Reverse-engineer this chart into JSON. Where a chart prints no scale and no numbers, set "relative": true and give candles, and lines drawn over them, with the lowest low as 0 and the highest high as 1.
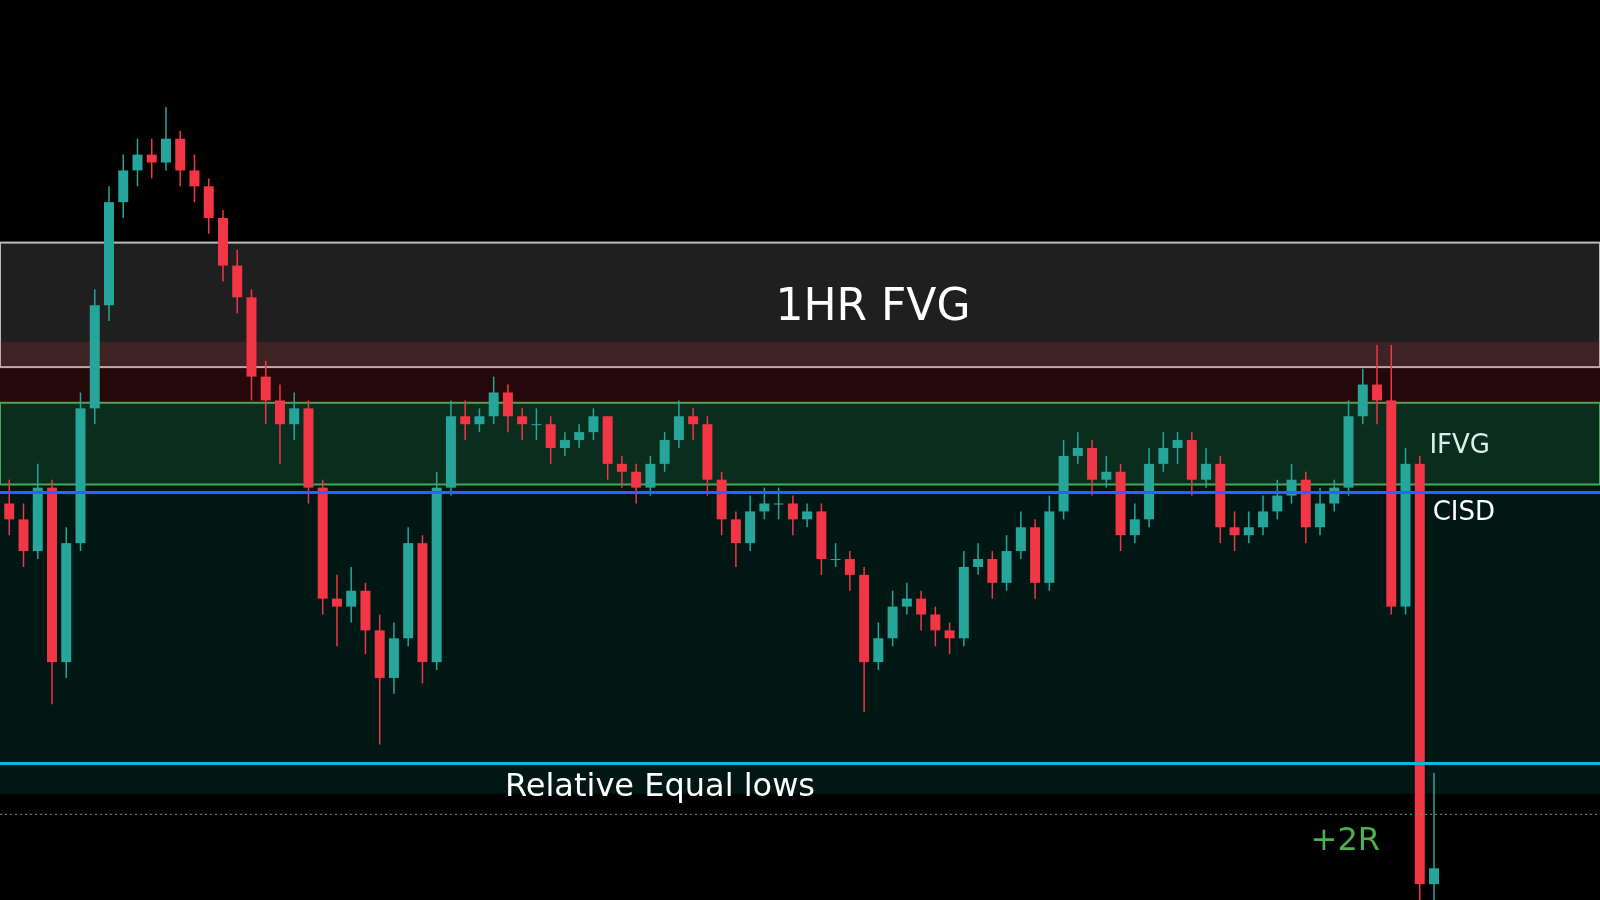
{
  "chart_data": {
    "type": "candlestick",
    "categories": [
      null,
      null,
      null,
      null,
      null,
      null,
      null,
      null,
      null,
      null,
      null,
      null,
      null,
      null,
      null,
      null,
      null,
      null,
      null,
      null,
      null,
      null,
      null,
      null,
      null,
      null,
      null,
      null,
      null,
      null,
      null,
      null,
      null,
      null,
      null,
      null,
      null,
      null,
      null,
      null,
      null,
      null,
      null,
      null,
      null,
      null,
      null,
      null,
      null,
      null,
      null,
      null,
      null,
      null,
      null,
      null,
      null,
      null,
      null,
      null,
      null,
      null,
      null,
      null,
      null,
      null,
      null,
      null,
      null,
      null,
      null,
      null,
      null,
      null,
      null,
      null,
      null,
      null,
      null,
      null,
      null,
      null,
      null,
      null,
      null,
      null,
      null,
      null,
      null,
      null,
      null,
      null,
      null,
      null,
      null,
      null,
      null,
      null,
      null,
      null,
      null,
      null,
      null,
      null,
      null,
      null,
      null,
      null,
      null,
      null,
      null,
      null
    ],
    "ohlc": [
      [
        0.5,
        0.53,
        0.46,
        0.48
      ],
      [
        0.48,
        0.5,
        0.42,
        0.44
      ],
      [
        0.44,
        0.55,
        0.43,
        0.52
      ],
      [
        0.52,
        0.53,
        0.247,
        0.3
      ],
      [
        0.3,
        0.47,
        0.28,
        0.45
      ],
      [
        0.45,
        0.64,
        0.44,
        0.62
      ],
      [
        0.62,
        0.77,
        0.6,
        0.75
      ],
      [
        0.75,
        0.9,
        0.73,
        0.88
      ],
      [
        0.88,
        0.94,
        0.86,
        0.92
      ],
      [
        0.92,
        0.96,
        0.9,
        0.94
      ],
      [
        0.94,
        0.96,
        0.91,
        0.93
      ],
      [
        0.93,
        1.0,
        0.92,
        0.96
      ],
      [
        0.96,
        0.97,
        0.9,
        0.92
      ],
      [
        0.92,
        0.94,
        0.88,
        0.9
      ],
      [
        0.9,
        0.91,
        0.84,
        0.86
      ],
      [
        0.86,
        0.87,
        0.78,
        0.8
      ],
      [
        0.8,
        0.82,
        0.74,
        0.76
      ],
      [
        0.76,
        0.77,
        0.63,
        0.66
      ],
      [
        0.66,
        0.68,
        0.6,
        0.63
      ],
      [
        0.63,
        0.65,
        0.55,
        0.6
      ],
      [
        0.6,
        0.64,
        0.58,
        0.62
      ],
      [
        0.62,
        0.63,
        0.5,
        0.52
      ],
      [
        0.52,
        0.53,
        0.36,
        0.38
      ],
      [
        0.38,
        0.41,
        0.32,
        0.37
      ],
      [
        0.37,
        0.42,
        0.35,
        0.39
      ],
      [
        0.39,
        0.4,
        0.31,
        0.34
      ],
      [
        0.34,
        0.36,
        0.196,
        0.28
      ],
      [
        0.28,
        0.35,
        0.26,
        0.33
      ],
      [
        0.33,
        0.47,
        0.32,
        0.45
      ],
      [
        0.45,
        0.46,
        0.273,
        0.3
      ],
      [
        0.3,
        0.54,
        0.29,
        0.52
      ],
      [
        0.52,
        0.63,
        0.51,
        0.61
      ],
      [
        0.61,
        0.63,
        0.58,
        0.6
      ],
      [
        0.6,
        0.62,
        0.59,
        0.61
      ],
      [
        0.61,
        0.66,
        0.6,
        0.64
      ],
      [
        0.64,
        0.65,
        0.59,
        0.61
      ],
      [
        0.61,
        0.62,
        0.58,
        0.6
      ],
      [
        0.6,
        0.62,
        0.58,
        0.6
      ],
      [
        0.6,
        0.61,
        0.55,
        0.57
      ],
      [
        0.57,
        0.59,
        0.56,
        0.58
      ],
      [
        0.58,
        0.6,
        0.57,
        0.59
      ],
      [
        0.59,
        0.62,
        0.58,
        0.61
      ],
      [
        0.61,
        0.61,
        0.53,
        0.55
      ],
      [
        0.55,
        0.56,
        0.52,
        0.54
      ],
      [
        0.54,
        0.55,
        0.5,
        0.52
      ],
      [
        0.52,
        0.56,
        0.51,
        0.55
      ],
      [
        0.55,
        0.59,
        0.54,
        0.58
      ],
      [
        0.58,
        0.63,
        0.57,
        0.61
      ],
      [
        0.61,
        0.62,
        0.58,
        0.6
      ],
      [
        0.6,
        0.61,
        0.51,
        0.53
      ],
      [
        0.53,
        0.54,
        0.46,
        0.48
      ],
      [
        0.48,
        0.49,
        0.42,
        0.45
      ],
      [
        0.45,
        0.51,
        0.44,
        0.49
      ],
      [
        0.49,
        0.52,
        0.48,
        0.5
      ],
      [
        0.5,
        0.52,
        0.48,
        0.5
      ],
      [
        0.5,
        0.51,
        0.46,
        0.48
      ],
      [
        0.48,
        0.5,
        0.47,
        0.49
      ],
      [
        0.49,
        0.5,
        0.41,
        0.43
      ],
      [
        0.43,
        0.45,
        0.42,
        0.43
      ],
      [
        0.43,
        0.44,
        0.39,
        0.41
      ],
      [
        0.41,
        0.42,
        0.237,
        0.3
      ],
      [
        0.3,
        0.35,
        0.29,
        0.33
      ],
      [
        0.33,
        0.39,
        0.32,
        0.37
      ],
      [
        0.37,
        0.4,
        0.36,
        0.38
      ],
      [
        0.38,
        0.39,
        0.34,
        0.36
      ],
      [
        0.36,
        0.37,
        0.32,
        0.34
      ],
      [
        0.34,
        0.35,
        0.31,
        0.33
      ],
      [
        0.33,
        0.44,
        0.32,
        0.42
      ],
      [
        0.42,
        0.45,
        0.41,
        0.43
      ],
      [
        0.43,
        0.44,
        0.38,
        0.4
      ],
      [
        0.4,
        0.46,
        0.39,
        0.44
      ],
      [
        0.44,
        0.49,
        0.43,
        0.47
      ],
      [
        0.47,
        0.48,
        0.38,
        0.4
      ],
      [
        0.4,
        0.51,
        0.39,
        0.49
      ],
      [
        0.49,
        0.58,
        0.48,
        0.56
      ],
      [
        0.56,
        0.59,
        0.55,
        0.57
      ],
      [
        0.57,
        0.58,
        0.51,
        0.53
      ],
      [
        0.53,
        0.56,
        0.52,
        0.54
      ],
      [
        0.54,
        0.55,
        0.44,
        0.46
      ],
      [
        0.46,
        0.5,
        0.45,
        0.48
      ],
      [
        0.48,
        0.57,
        0.47,
        0.55
      ],
      [
        0.55,
        0.59,
        0.54,
        0.57
      ],
      [
        0.57,
        0.59,
        0.55,
        0.58
      ],
      [
        0.58,
        0.59,
        0.51,
        0.53
      ],
      [
        0.53,
        0.57,
        0.52,
        0.55
      ],
      [
        0.55,
        0.56,
        0.45,
        0.47
      ],
      [
        0.47,
        0.49,
        0.44,
        0.46
      ],
      [
        0.46,
        0.49,
        0.45,
        0.47
      ],
      [
        0.47,
        0.51,
        0.46,
        0.49
      ],
      [
        0.49,
        0.53,
        0.48,
        0.51
      ],
      [
        0.51,
        0.55,
        0.5,
        0.53
      ],
      [
        0.53,
        0.54,
        0.45,
        0.47
      ],
      [
        0.47,
        0.52,
        0.46,
        0.5
      ],
      [
        0.5,
        0.53,
        0.49,
        0.52
      ],
      [
        0.52,
        0.63,
        0.51,
        0.61
      ],
      [
        0.61,
        0.67,
        0.6,
        0.65
      ],
      [
        0.65,
        0.7,
        0.6,
        0.63
      ],
      [
        0.63,
        0.7,
        0.36,
        0.37
      ],
      [
        0.37,
        0.57,
        0.36,
        0.55
      ],
      [
        0.55,
        0.56,
        0.0,
        0.02
      ],
      [
        0.02,
        0.16,
        0.0,
        0.04
      ],
      null,
      null,
      null,
      null,
      null,
      null,
      null,
      null,
      null,
      null,
      null
    ],
    "bands": [
      {
        "axis": "y",
        "from": 0.672,
        "to": 0.829,
        "label": "1HR FVG",
        "color": "#222222"
      },
      {
        "axis": "y",
        "from": 0.524,
        "to": 0.627,
        "label": "IFVG",
        "color": "#4caf50"
      },
      {
        "axis": "y",
        "from": 0.627,
        "to": 0.704,
        "color": "#f23645"
      },
      {
        "axis": "y",
        "from": 0.134,
        "to": 0.627,
        "color": "#089981"
      }
    ],
    "ref_lines": [
      {
        "axis": "y",
        "value": 0.172,
        "label": "Relative Equal lows",
        "color": "#00bcd4"
      },
      {
        "axis": "y",
        "value": 0.514,
        "label": "CISD",
        "color": "#2962ff"
      },
      {
        "axis": "y",
        "value": 0.108,
        "label": "+2R",
        "color": "#4caf50",
        "line_style": "dotted"
      }
    ],
    "relative": true
  }
}
